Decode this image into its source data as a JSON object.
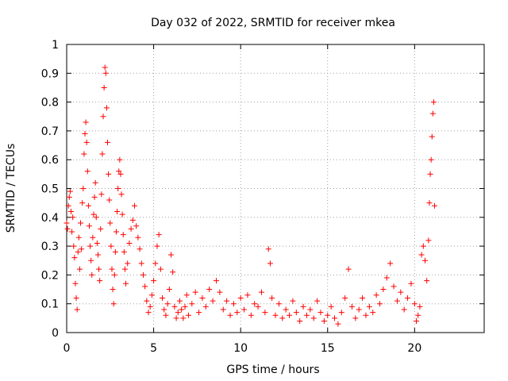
{
  "chart_data": {
    "type": "scatter",
    "title": "Day 032 of 2022, SRMTID for receiver mkea",
    "xlabel": "GPS time / hours",
    "ylabel": "SRMTID / TECUs",
    "xlim": [
      0,
      24
    ],
    "ylim": [
      0,
      1
    ],
    "xticks": [
      "0",
      "5",
      "10",
      "15",
      "20"
    ],
    "yticks": [
      "0",
      "0.1",
      "0.2",
      "0.3",
      "0.4",
      "0.5",
      "0.6",
      "0.7",
      "0.8",
      "0.9",
      "1"
    ],
    "grid": true,
    "marker": "+",
    "color": "#ff0000",
    "series": [
      {
        "name": "SRMTID",
        "points": [
          [
            0.0,
            0.38
          ],
          [
            0.05,
            0.36
          ],
          [
            0.1,
            0.44
          ],
          [
            0.15,
            0.47
          ],
          [
            0.2,
            0.49
          ],
          [
            0.25,
            0.42
          ],
          [
            0.3,
            0.35
          ],
          [
            0.35,
            0.4
          ],
          [
            0.4,
            0.3
          ],
          [
            0.45,
            0.26
          ],
          [
            0.5,
            0.17
          ],
          [
            0.55,
            0.12
          ],
          [
            0.6,
            0.08
          ],
          [
            0.65,
            0.28
          ],
          [
            0.7,
            0.33
          ],
          [
            0.75,
            0.22
          ],
          [
            0.8,
            0.38
          ],
          [
            0.85,
            0.29
          ],
          [
            0.9,
            0.45
          ],
          [
            0.95,
            0.5
          ],
          [
            1.0,
            0.62
          ],
          [
            1.05,
            0.69
          ],
          [
            1.1,
            0.73
          ],
          [
            1.15,
            0.66
          ],
          [
            1.2,
            0.56
          ],
          [
            1.25,
            0.44
          ],
          [
            1.3,
            0.37
          ],
          [
            1.35,
            0.3
          ],
          [
            1.4,
            0.25
          ],
          [
            1.45,
            0.2
          ],
          [
            1.5,
            0.33
          ],
          [
            1.55,
            0.41
          ],
          [
            1.6,
            0.47
          ],
          [
            1.65,
            0.52
          ],
          [
            1.7,
            0.4
          ],
          [
            1.75,
            0.31
          ],
          [
            1.8,
            0.27
          ],
          [
            1.85,
            0.22
          ],
          [
            1.9,
            0.18
          ],
          [
            1.95,
            0.36
          ],
          [
            2.0,
            0.48
          ],
          [
            2.05,
            0.62
          ],
          [
            2.1,
            0.75
          ],
          [
            2.15,
            0.85
          ],
          [
            2.2,
            0.92
          ],
          [
            2.25,
            0.9
          ],
          [
            2.3,
            0.78
          ],
          [
            2.35,
            0.66
          ],
          [
            2.4,
            0.55
          ],
          [
            2.45,
            0.46
          ],
          [
            2.5,
            0.38
          ],
          [
            2.55,
            0.3
          ],
          [
            2.6,
            0.22
          ],
          [
            2.65,
            0.15
          ],
          [
            2.7,
            0.1
          ],
          [
            2.75,
            0.2
          ],
          [
            2.8,
            0.28
          ],
          [
            2.85,
            0.35
          ],
          [
            2.9,
            0.42
          ],
          [
            2.95,
            0.5
          ],
          [
            3.0,
            0.56
          ],
          [
            3.05,
            0.6
          ],
          [
            3.1,
            0.55
          ],
          [
            3.15,
            0.48
          ],
          [
            3.2,
            0.41
          ],
          [
            3.25,
            0.34
          ],
          [
            3.3,
            0.28
          ],
          [
            3.35,
            0.22
          ],
          [
            3.4,
            0.17
          ],
          [
            3.5,
            0.24
          ],
          [
            3.6,
            0.31
          ],
          [
            3.7,
            0.36
          ],
          [
            3.8,
            0.39
          ],
          [
            3.9,
            0.44
          ],
          [
            4.0,
            0.37
          ],
          [
            4.1,
            0.33
          ],
          [
            4.2,
            0.29
          ],
          [
            4.3,
            0.24
          ],
          [
            4.4,
            0.2
          ],
          [
            4.5,
            0.16
          ],
          [
            4.6,
            0.11
          ],
          [
            4.7,
            0.07
          ],
          [
            4.8,
            0.09
          ],
          [
            4.9,
            0.13
          ],
          [
            5.0,
            0.18
          ],
          [
            5.1,
            0.24
          ],
          [
            5.2,
            0.3
          ],
          [
            5.3,
            0.34
          ],
          [
            5.4,
            0.22
          ],
          [
            5.5,
            0.12
          ],
          [
            5.6,
            0.08
          ],
          [
            5.7,
            0.06
          ],
          [
            5.8,
            0.1
          ],
          [
            5.9,
            0.15
          ],
          [
            6.0,
            0.27
          ],
          [
            6.1,
            0.21
          ],
          [
            6.2,
            0.09
          ],
          [
            6.3,
            0.05
          ],
          [
            6.4,
            0.07
          ],
          [
            6.5,
            0.11
          ],
          [
            6.6,
            0.08
          ],
          [
            6.7,
            0.05
          ],
          [
            6.8,
            0.09
          ],
          [
            6.9,
            0.13
          ],
          [
            7.0,
            0.06
          ],
          [
            7.2,
            0.1
          ],
          [
            7.4,
            0.14
          ],
          [
            7.6,
            0.07
          ],
          [
            7.8,
            0.12
          ],
          [
            8.0,
            0.09
          ],
          [
            8.2,
            0.15
          ],
          [
            8.4,
            0.11
          ],
          [
            8.6,
            0.18
          ],
          [
            8.8,
            0.14
          ],
          [
            9.0,
            0.08
          ],
          [
            9.2,
            0.11
          ],
          [
            9.4,
            0.06
          ],
          [
            9.6,
            0.1
          ],
          [
            9.8,
            0.07
          ],
          [
            10.0,
            0.12
          ],
          [
            10.2,
            0.08
          ],
          [
            10.4,
            0.13
          ],
          [
            10.6,
            0.06
          ],
          [
            10.8,
            0.1
          ],
          [
            11.0,
            0.09
          ],
          [
            11.2,
            0.14
          ],
          [
            11.4,
            0.07
          ],
          [
            11.6,
            0.29
          ],
          [
            11.7,
            0.24
          ],
          [
            11.8,
            0.12
          ],
          [
            12.0,
            0.06
          ],
          [
            12.2,
            0.1
          ],
          [
            12.4,
            0.05
          ],
          [
            12.6,
            0.08
          ],
          [
            12.8,
            0.06
          ],
          [
            13.0,
            0.11
          ],
          [
            13.2,
            0.07
          ],
          [
            13.4,
            0.04
          ],
          [
            13.6,
            0.09
          ],
          [
            13.8,
            0.06
          ],
          [
            14.0,
            0.08
          ],
          [
            14.2,
            0.05
          ],
          [
            14.4,
            0.11
          ],
          [
            14.6,
            0.07
          ],
          [
            14.8,
            0.04
          ],
          [
            15.0,
            0.06
          ],
          [
            15.2,
            0.09
          ],
          [
            15.4,
            0.05
          ],
          [
            15.6,
            0.03
          ],
          [
            15.8,
            0.07
          ],
          [
            16.0,
            0.12
          ],
          [
            16.2,
            0.22
          ],
          [
            16.4,
            0.09
          ],
          [
            16.6,
            0.05
          ],
          [
            16.8,
            0.08
          ],
          [
            17.0,
            0.12
          ],
          [
            17.2,
            0.06
          ],
          [
            17.4,
            0.09
          ],
          [
            17.6,
            0.07
          ],
          [
            17.8,
            0.13
          ],
          [
            18.0,
            0.1
          ],
          [
            18.2,
            0.15
          ],
          [
            18.4,
            0.19
          ],
          [
            18.6,
            0.24
          ],
          [
            18.8,
            0.16
          ],
          [
            19.0,
            0.11
          ],
          [
            19.2,
            0.14
          ],
          [
            19.4,
            0.08
          ],
          [
            19.6,
            0.12
          ],
          [
            19.8,
            0.17
          ],
          [
            20.0,
            0.1
          ],
          [
            20.1,
            0.04
          ],
          [
            20.2,
            0.06
          ],
          [
            20.3,
            0.09
          ],
          [
            20.4,
            0.27
          ],
          [
            20.5,
            0.3
          ],
          [
            20.6,
            0.25
          ],
          [
            20.7,
            0.18
          ],
          [
            20.8,
            0.32
          ],
          [
            20.85,
            0.45
          ],
          [
            20.9,
            0.55
          ],
          [
            20.95,
            0.6
          ],
          [
            21.0,
            0.68
          ],
          [
            21.05,
            0.76
          ],
          [
            21.1,
            0.8
          ],
          [
            21.15,
            0.44
          ]
        ]
      }
    ]
  }
}
